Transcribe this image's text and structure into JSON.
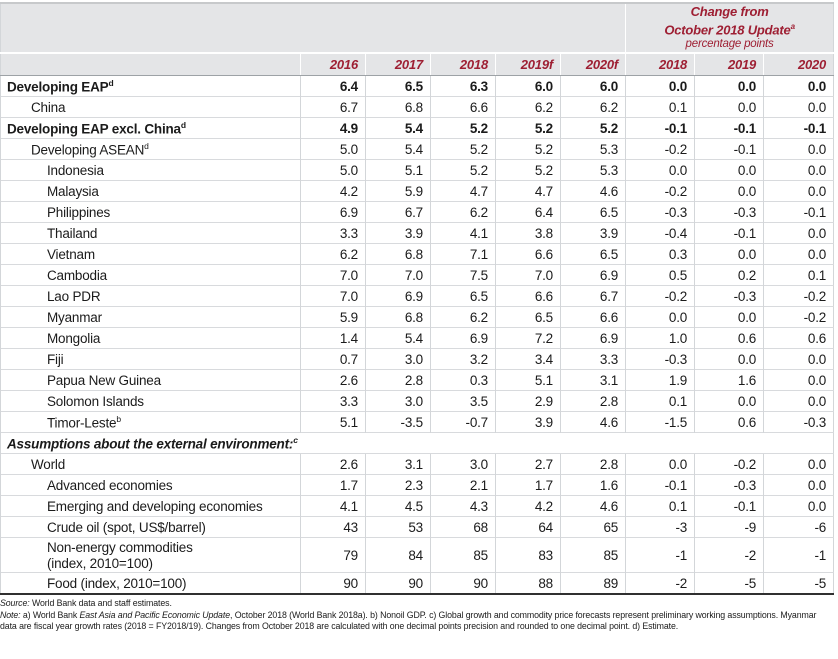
{
  "colors": {
    "accent_red": "#9e1f33",
    "header_bg": "#e4e5e7",
    "grid_line": "#d3d6d9",
    "bottom_border": "#303030"
  },
  "header": {
    "change_title_line1": "Change from",
    "change_title_line2": "October 2018 Update",
    "change_title_sup": "a",
    "change_subtitle": "percentage points",
    "year_cols": [
      "2016",
      "2017",
      "2018",
      "2019f",
      "2020f"
    ],
    "change_cols": [
      "2018",
      "2019",
      "2020"
    ]
  },
  "rows": [
    {
      "label": "Developing EAP",
      "sup": "d",
      "style": "bold",
      "indent": 0,
      "values": [
        "6.4",
        "6.5",
        "6.3",
        "6.0",
        "6.0"
      ],
      "changes": [
        "0.0",
        "0.0",
        "0.0"
      ]
    },
    {
      "label": "China",
      "indent": 1,
      "values": [
        "6.7",
        "6.8",
        "6.6",
        "6.2",
        "6.2"
      ],
      "changes": [
        "0.1",
        "0.0",
        "0.0"
      ]
    },
    {
      "label": "Developing EAP excl. China",
      "sup": "d",
      "style": "bold",
      "indent": 0,
      "values": [
        "4.9",
        "5.4",
        "5.2",
        "5.2",
        "5.2"
      ],
      "changes": [
        "-0.1",
        "-0.1",
        "-0.1"
      ]
    },
    {
      "label": "Developing ASEAN",
      "sup": "d",
      "indent": 1,
      "values": [
        "5.0",
        "5.4",
        "5.2",
        "5.2",
        "5.3"
      ],
      "changes": [
        "-0.2",
        "-0.1",
        "0.0"
      ]
    },
    {
      "label": "Indonesia",
      "indent": 2,
      "values": [
        "5.0",
        "5.1",
        "5.2",
        "5.2",
        "5.3"
      ],
      "changes": [
        "0.0",
        "0.0",
        "0.0"
      ]
    },
    {
      "label": "Malaysia",
      "indent": 2,
      "values": [
        "4.2",
        "5.9",
        "4.7",
        "4.7",
        "4.6"
      ],
      "changes": [
        "-0.2",
        "0.0",
        "0.0"
      ]
    },
    {
      "label": "Philippines",
      "indent": 2,
      "values": [
        "6.9",
        "6.7",
        "6.2",
        "6.4",
        "6.5"
      ],
      "changes": [
        "-0.3",
        "-0.3",
        "-0.1"
      ]
    },
    {
      "label": "Thailand",
      "indent": 2,
      "values": [
        "3.3",
        "3.9",
        "4.1",
        "3.8",
        "3.9"
      ],
      "changes": [
        "-0.4",
        "-0.1",
        "0.0"
      ]
    },
    {
      "label": "Vietnam",
      "indent": 2,
      "values": [
        "6.2",
        "6.8",
        "7.1",
        "6.6",
        "6.5"
      ],
      "changes": [
        "0.3",
        "0.0",
        "0.0"
      ]
    },
    {
      "label": "Cambodia",
      "indent": 2,
      "values": [
        "7.0",
        "7.0",
        "7.5",
        "7.0",
        "6.9"
      ],
      "changes": [
        "0.5",
        "0.2",
        "0.1"
      ]
    },
    {
      "label": "Lao PDR",
      "indent": 2,
      "values": [
        "7.0",
        "6.9",
        "6.5",
        "6.6",
        "6.7"
      ],
      "changes": [
        "-0.2",
        "-0.3",
        "-0.2"
      ]
    },
    {
      "label": "Myanmar",
      "indent": 2,
      "values": [
        "5.9",
        "6.8",
        "6.2",
        "6.5",
        "6.6"
      ],
      "changes": [
        "0.0",
        "0.0",
        "-0.2"
      ]
    },
    {
      "label": "Mongolia",
      "indent": 2,
      "values": [
        "1.4",
        "5.4",
        "6.9",
        "7.2",
        "6.9"
      ],
      "changes": [
        "1.0",
        "0.6",
        "0.6"
      ]
    },
    {
      "label": "Fiji",
      "indent": 2,
      "values": [
        "0.7",
        "3.0",
        "3.2",
        "3.4",
        "3.3"
      ],
      "changes": [
        "-0.3",
        "0.0",
        "0.0"
      ]
    },
    {
      "label": "Papua New Guinea",
      "indent": 2,
      "values": [
        "2.6",
        "2.8",
        "0.3",
        "5.1",
        "3.1"
      ],
      "changes": [
        "1.9",
        "1.6",
        "0.0"
      ]
    },
    {
      "label": "Solomon Islands",
      "indent": 2,
      "values": [
        "3.3",
        "3.0",
        "3.5",
        "2.9",
        "2.8"
      ],
      "changes": [
        "0.1",
        "0.0",
        "0.0"
      ]
    },
    {
      "label": "Timor-Leste",
      "sup": "b",
      "indent": 2,
      "values": [
        "5.1",
        "-3.5",
        "-0.7",
        "3.9",
        "4.6"
      ],
      "changes": [
        "-1.5",
        "0.6",
        "-0.3"
      ]
    },
    {
      "type": "section",
      "label": "Assumptions about the external environment:",
      "sup": "c"
    },
    {
      "label": "World",
      "indent": 1,
      "values": [
        "2.6",
        "3.1",
        "3.0",
        "2.7",
        "2.8"
      ],
      "changes": [
        "0.0",
        "-0.2",
        "0.0"
      ]
    },
    {
      "label": "Advanced economies",
      "indent": 2,
      "values": [
        "1.7",
        "2.3",
        "2.1",
        "1.7",
        "1.6"
      ],
      "changes": [
        "-0.1",
        "-0.3",
        "0.0"
      ]
    },
    {
      "label": "Emerging and developing economies",
      "indent": 2,
      "values": [
        "4.1",
        "4.5",
        "4.3",
        "4.2",
        "4.6"
      ],
      "changes": [
        "0.1",
        "-0.1",
        "0.0"
      ]
    },
    {
      "label": "Crude oil (spot, US$/barrel)",
      "indent": 2,
      "values": [
        "43",
        "53",
        "68",
        "64",
        "65"
      ],
      "changes": [
        "-3",
        "-9",
        "-6"
      ]
    },
    {
      "label": "Non-energy commodities",
      "label2": "(index, 2010=100)",
      "indent": 2,
      "values": [
        "79",
        "84",
        "85",
        "83",
        "85"
      ],
      "changes": [
        "-1",
        "-2",
        "-1"
      ]
    },
    {
      "label": "Food (index, 2010=100)",
      "indent": 2,
      "values": [
        "90",
        "90",
        "90",
        "88",
        "89"
      ],
      "changes": [
        "-2",
        "-5",
        "-5"
      ]
    }
  ],
  "footer": {
    "source_label": "Source:",
    "source_text": " World Bank data and staff estimates.",
    "note_label": "Note:",
    "note_pre": " a) World Bank ",
    "note_italic": "East Asia and Pacific Economic Update",
    "note_post": ", October 2018 (World Bank 2018a). b) Nonoil GDP. c) Global growth and commodity price forecasts represent preliminary working assumptions. Myanmar data are fiscal year growth rates (2018 = FY2018/19). Changes from October 2018 are calculated with one decimal points precision and rounded to one decimal point. d) Estimate."
  }
}
